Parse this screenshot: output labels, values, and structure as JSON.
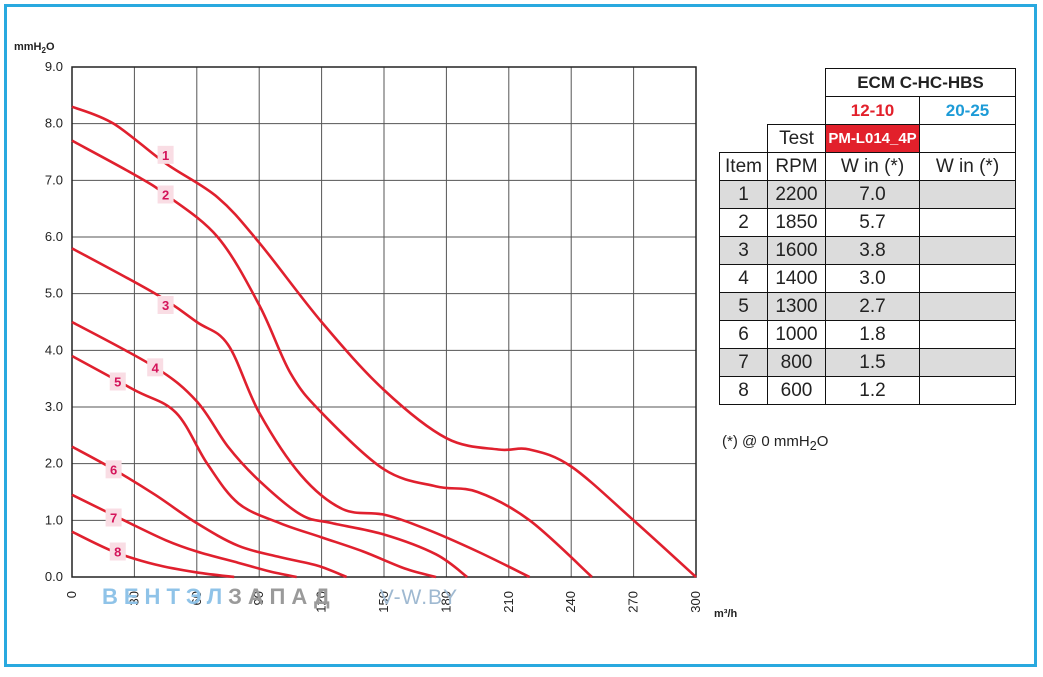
{
  "chart_data": {
    "type": "line",
    "ylabel": "mmH2O",
    "xlabel": "m³/h",
    "xlim": [
      0,
      300
    ],
    "ylim": [
      0,
      9
    ],
    "x_ticks": [
      "0",
      "30",
      "60",
      "90",
      "120",
      "150",
      "180",
      "210",
      "240",
      "270",
      "300"
    ],
    "y_ticks": [
      "0.0",
      "1.0",
      "2.0",
      "3.0",
      "4.0",
      "5.0",
      "6.0",
      "7.0",
      "8.0",
      "9.0"
    ],
    "grid": true,
    "series": [
      {
        "name": "1",
        "points": [
          [
            0,
            8.3
          ],
          [
            20,
            8.0
          ],
          [
            45,
            7.3
          ],
          [
            70,
            6.7
          ],
          [
            90,
            5.9
          ],
          [
            120,
            4.5
          ],
          [
            150,
            3.3
          ],
          [
            180,
            2.45
          ],
          [
            205,
            2.25
          ],
          [
            220,
            2.25
          ],
          [
            240,
            1.95
          ],
          [
            270,
            1.0
          ],
          [
            300,
            0.0
          ]
        ]
      },
      {
        "name": "2",
        "points": [
          [
            0,
            7.7
          ],
          [
            30,
            7.1
          ],
          [
            45,
            6.75
          ],
          [
            70,
            6.0
          ],
          [
            90,
            4.8
          ],
          [
            105,
            3.6
          ],
          [
            120,
            2.9
          ],
          [
            150,
            1.9
          ],
          [
            175,
            1.6
          ],
          [
            195,
            1.5
          ],
          [
            220,
            1.0
          ],
          [
            250,
            0.0
          ]
        ]
      },
      {
        "name": "3",
        "points": [
          [
            0,
            5.8
          ],
          [
            40,
            5.0
          ],
          [
            60,
            4.5
          ],
          [
            75,
            4.1
          ],
          [
            90,
            2.9
          ],
          [
            110,
            1.8
          ],
          [
            130,
            1.2
          ],
          [
            150,
            1.1
          ],
          [
            170,
            0.85
          ],
          [
            195,
            0.45
          ],
          [
            220,
            0.0
          ]
        ]
      },
      {
        "name": "4",
        "points": [
          [
            0,
            4.5
          ],
          [
            40,
            3.7
          ],
          [
            60,
            3.1
          ],
          [
            75,
            2.3
          ],
          [
            90,
            1.7
          ],
          [
            110,
            1.1
          ],
          [
            125,
            0.95
          ],
          [
            150,
            0.75
          ],
          [
            175,
            0.4
          ],
          [
            190,
            0.0
          ]
        ]
      },
      {
        "name": "5",
        "points": [
          [
            0,
            3.9
          ],
          [
            30,
            3.3
          ],
          [
            50,
            2.9
          ],
          [
            65,
            2.0
          ],
          [
            80,
            1.3
          ],
          [
            100,
            0.95
          ],
          [
            120,
            0.7
          ],
          [
            140,
            0.45
          ],
          [
            160,
            0.15
          ],
          [
            175,
            0.0
          ]
        ]
      },
      {
        "name": "6",
        "points": [
          [
            0,
            2.3
          ],
          [
            20,
            1.9
          ],
          [
            40,
            1.45
          ],
          [
            60,
            0.95
          ],
          [
            80,
            0.55
          ],
          [
            100,
            0.35
          ],
          [
            118,
            0.2
          ],
          [
            132,
            0.0
          ]
        ]
      },
      {
        "name": "7",
        "points": [
          [
            0,
            1.45
          ],
          [
            25,
            1.0
          ],
          [
            45,
            0.65
          ],
          [
            60,
            0.45
          ],
          [
            80,
            0.25
          ],
          [
            95,
            0.1
          ],
          [
            108,
            0.0
          ]
        ]
      },
      {
        "name": "8",
        "points": [
          [
            0,
            0.8
          ],
          [
            20,
            0.45
          ],
          [
            40,
            0.22
          ],
          [
            60,
            0.08
          ],
          [
            78,
            0.0
          ]
        ]
      }
    ],
    "curve_label_positions": [
      [
        45,
        7.45
      ],
      [
        45,
        6.75
      ],
      [
        45,
        4.8
      ],
      [
        40,
        3.7
      ],
      [
        22,
        3.45
      ],
      [
        20,
        1.9
      ],
      [
        20,
        1.05
      ],
      [
        22,
        0.45
      ]
    ],
    "line_color": "#e0202e"
  },
  "table": {
    "model": "ECM C-HC-HBS",
    "size_a": "12-10",
    "size_b": "20-25",
    "test_label": "Test",
    "test_value": "PM-L014_4P",
    "headers": [
      "Item",
      "RPM",
      "W in (*)",
      "W in (*)"
    ],
    "rows": [
      [
        "1",
        "2200",
        "7.0",
        ""
      ],
      [
        "2",
        "1850",
        "5.7",
        ""
      ],
      [
        "3",
        "1600",
        "3.8",
        ""
      ],
      [
        "4",
        "1400",
        "3.0",
        ""
      ],
      [
        "5",
        "1300",
        "2.7",
        ""
      ],
      [
        "6",
        "1000",
        "1.8",
        ""
      ],
      [
        "7",
        "800",
        "1.5",
        ""
      ],
      [
        "8",
        "600",
        "1.2",
        ""
      ]
    ],
    "note": "(*) @ 0 mmH2O"
  },
  "watermark": {
    "part1": "ВЕНТ",
    "part2": "ЭЛ",
    "part3": "ЗАПАД",
    "part4": "V-W.BY"
  },
  "colors": {
    "frame": "#29a9df",
    "curve": "#e0202e",
    "accent_red": "#e2202b",
    "accent_blue": "#1d9bd7"
  }
}
